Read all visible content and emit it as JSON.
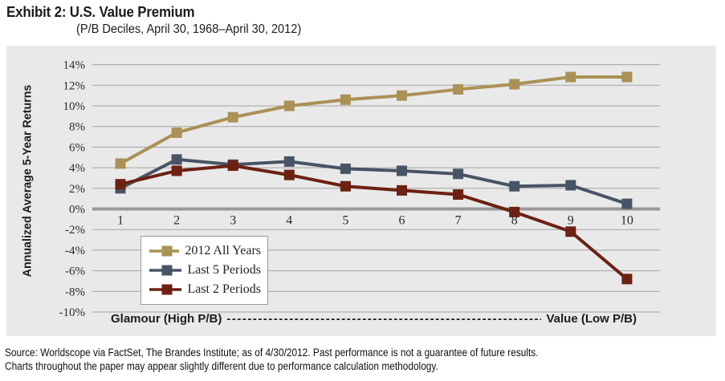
{
  "header": {
    "title": "Exhibit 2: U.S. Value Premium",
    "subtitle": "(P/B Deciles, April 30, 1968–April 30, 2012)"
  },
  "x_axis_annotation": {
    "left": "Glamour (High P/B)",
    "dashes": "--------------------------------------------------------------------------------------------------------------------------------------------",
    "right": "Value (Low P/B)"
  },
  "footer": {
    "source_line1": "Source: Worldscope via FactSet, The Brandes Institute; as of 4/30/2012. Past performance is not a guarantee of future results.",
    "source_line2": "Charts throughout the paper may appear slightly different due to performance calculation methodology."
  },
  "colors": {
    "panel_bg": "#e9e9e9",
    "gridline": "#a3a3a3",
    "zero_axis": "#999999",
    "tick_text": "#2b2b2b"
  },
  "chart_data": {
    "type": "line",
    "title": "U.S. Value Premium",
    "ylabel": "Annualized Average 5-Year Returns",
    "xlabel": "",
    "categories": [
      "1",
      "2",
      "3",
      "4",
      "5",
      "6",
      "7",
      "8",
      "9",
      "10"
    ],
    "ylim": [
      -10,
      14
    ],
    "ytick_step": 2,
    "ytick_labels": [
      "14%",
      "12%",
      "10%",
      "8%",
      "6%",
      "4%",
      "2%",
      "0%",
      "-2%",
      "-4%",
      "-6%",
      "-8%",
      "-10%"
    ],
    "grid": true,
    "legend_position": "inside-bottom-left",
    "marker": "square",
    "series": [
      {
        "name": "2012 All Years",
        "color": "#aa9155",
        "values": [
          4.4,
          7.4,
          8.9,
          10.0,
          10.6,
          11.0,
          11.6,
          12.1,
          12.8,
          12.8
        ]
      },
      {
        "name": "Last 5 Periods",
        "color": "#485464",
        "values": [
          2.0,
          4.8,
          4.3,
          4.6,
          3.9,
          3.7,
          3.4,
          2.2,
          2.3,
          0.5
        ]
      },
      {
        "name": "Last 2 Periods",
        "color": "#6c2112",
        "values": [
          2.4,
          3.7,
          4.2,
          3.3,
          2.2,
          1.8,
          1.4,
          -0.3,
          -2.2,
          -6.8
        ]
      }
    ]
  }
}
